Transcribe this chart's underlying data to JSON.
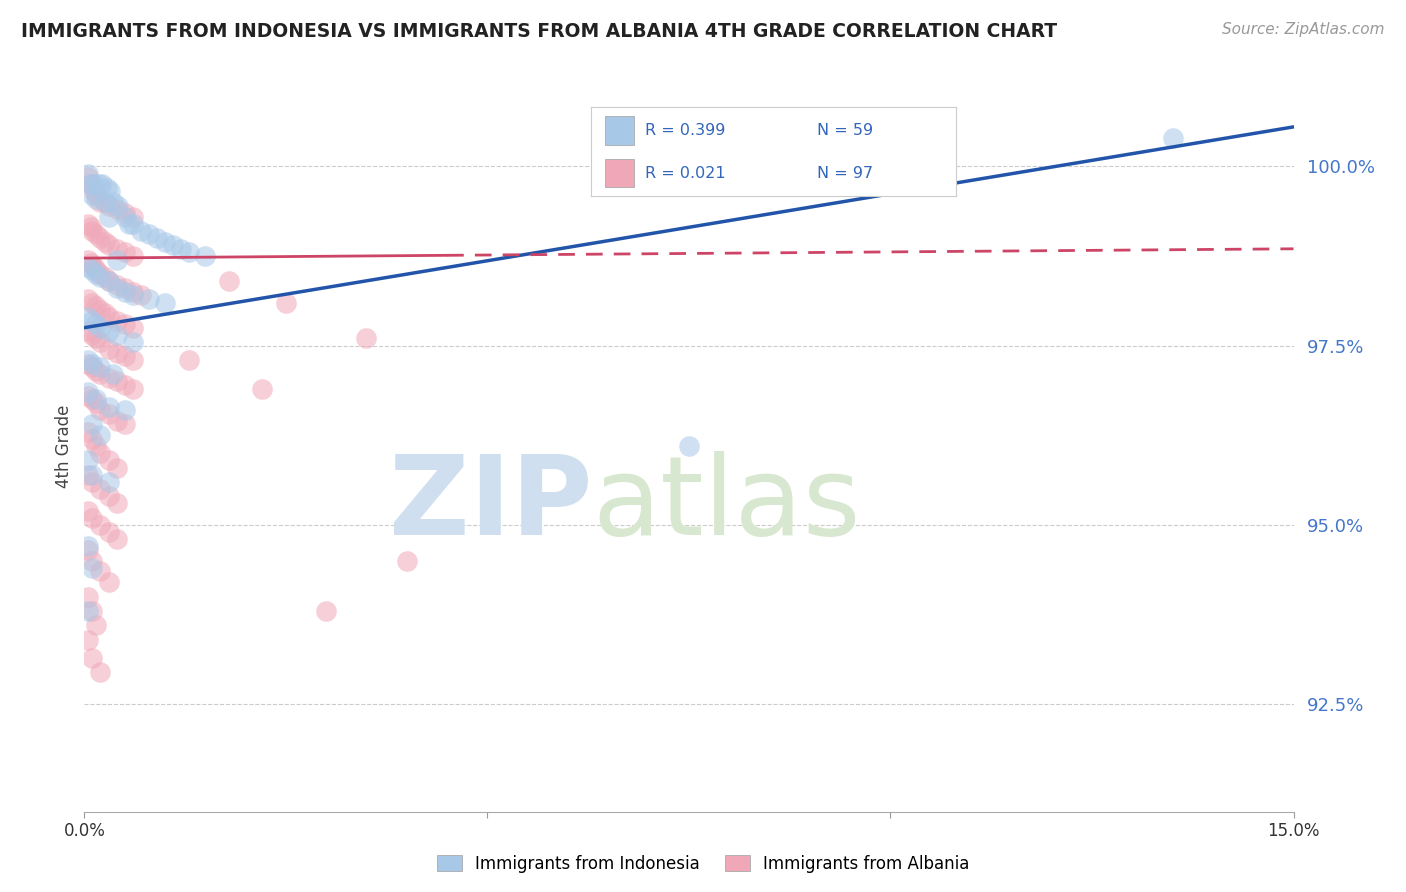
{
  "title": "IMMIGRANTS FROM INDONESIA VS IMMIGRANTS FROM ALBANIA 4TH GRADE CORRELATION CHART",
  "source_text": "Source: ZipAtlas.com",
  "ylabel": "4th Grade",
  "y_ticks": [
    92.5,
    95.0,
    97.5,
    100.0
  ],
  "y_tick_labels": [
    "92.5%",
    "95.0%",
    "97.5%",
    "100.0%"
  ],
  "x_range": [
    0.0,
    15.0
  ],
  "y_range": [
    91.0,
    101.2
  ],
  "indonesia_R": 0.399,
  "indonesia_N": 59,
  "albania_R": 0.021,
  "albania_N": 97,
  "blue_color": "#a8c8e8",
  "pink_color": "#f0a8b8",
  "blue_line_color": "#2255aa",
  "pink_line_color": "#cc4466",
  "watermark_color": "#d0dff0",
  "legend_label_indonesia": "Immigrants from Indonesia",
  "legend_label_albania": "Immigrants from Albania",
  "blue_line_x0": 0.0,
  "blue_line_y0": 97.75,
  "blue_line_x1": 15.0,
  "blue_line_y1": 100.55,
  "pink_line_x0": 0.0,
  "pink_line_y0": 98.72,
  "pink_line_x1": 15.0,
  "pink_line_y1": 98.85,
  "pink_solid_end": 4.5,
  "indonesia_scatter": [
    [
      0.05,
      99.9
    ],
    [
      0.08,
      99.75
    ],
    [
      0.12,
      99.75
    ],
    [
      0.18,
      99.75
    ],
    [
      0.22,
      99.75
    ],
    [
      0.28,
      99.7
    ],
    [
      0.32,
      99.65
    ],
    [
      0.1,
      99.6
    ],
    [
      0.15,
      99.55
    ],
    [
      0.25,
      99.5
    ],
    [
      0.35,
      99.5
    ],
    [
      0.42,
      99.45
    ],
    [
      0.3,
      99.3
    ],
    [
      0.5,
      99.3
    ],
    [
      0.55,
      99.2
    ],
    [
      0.6,
      99.2
    ],
    [
      0.7,
      99.1
    ],
    [
      0.8,
      99.05
    ],
    [
      0.9,
      99.0
    ],
    [
      1.0,
      98.95
    ],
    [
      1.1,
      98.9
    ],
    [
      1.2,
      98.85
    ],
    [
      1.3,
      98.8
    ],
    [
      1.5,
      98.75
    ],
    [
      0.4,
      98.7
    ],
    [
      0.05,
      98.6
    ],
    [
      0.1,
      98.55
    ],
    [
      0.15,
      98.5
    ],
    [
      0.2,
      98.45
    ],
    [
      0.3,
      98.4
    ],
    [
      0.4,
      98.3
    ],
    [
      0.5,
      98.25
    ],
    [
      0.6,
      98.2
    ],
    [
      0.8,
      98.15
    ],
    [
      1.0,
      98.1
    ],
    [
      0.05,
      97.9
    ],
    [
      0.1,
      97.85
    ],
    [
      0.15,
      97.8
    ],
    [
      0.2,
      97.75
    ],
    [
      0.3,
      97.7
    ],
    [
      0.4,
      97.65
    ],
    [
      0.6,
      97.55
    ],
    [
      0.05,
      97.3
    ],
    [
      0.1,
      97.25
    ],
    [
      0.2,
      97.2
    ],
    [
      0.35,
      97.1
    ],
    [
      0.05,
      96.85
    ],
    [
      0.15,
      96.75
    ],
    [
      0.3,
      96.65
    ],
    [
      0.5,
      96.6
    ],
    [
      0.1,
      96.4
    ],
    [
      0.2,
      96.25
    ],
    [
      0.05,
      95.9
    ],
    [
      0.1,
      95.7
    ],
    [
      0.3,
      95.6
    ],
    [
      0.05,
      94.7
    ],
    [
      0.1,
      94.4
    ],
    [
      0.05,
      93.8
    ],
    [
      7.5,
      96.1
    ],
    [
      13.5,
      100.4
    ]
  ],
  "albania_scatter": [
    [
      0.05,
      99.85
    ],
    [
      0.08,
      99.75
    ],
    [
      0.12,
      99.65
    ],
    [
      0.15,
      99.6
    ],
    [
      0.2,
      99.5
    ],
    [
      0.25,
      99.5
    ],
    [
      0.3,
      99.45
    ],
    [
      0.4,
      99.4
    ],
    [
      0.5,
      99.35
    ],
    [
      0.6,
      99.3
    ],
    [
      0.05,
      99.2
    ],
    [
      0.08,
      99.15
    ],
    [
      0.1,
      99.1
    ],
    [
      0.15,
      99.05
    ],
    [
      0.2,
      99.0
    ],
    [
      0.25,
      98.95
    ],
    [
      0.3,
      98.9
    ],
    [
      0.4,
      98.85
    ],
    [
      0.5,
      98.8
    ],
    [
      0.6,
      98.75
    ],
    [
      0.05,
      98.7
    ],
    [
      0.08,
      98.65
    ],
    [
      0.12,
      98.6
    ],
    [
      0.15,
      98.55
    ],
    [
      0.2,
      98.5
    ],
    [
      0.25,
      98.45
    ],
    [
      0.3,
      98.4
    ],
    [
      0.4,
      98.35
    ],
    [
      0.5,
      98.3
    ],
    [
      0.6,
      98.25
    ],
    [
      0.7,
      98.2
    ],
    [
      0.05,
      98.15
    ],
    [
      0.1,
      98.1
    ],
    [
      0.15,
      98.05
    ],
    [
      0.2,
      98.0
    ],
    [
      0.25,
      97.95
    ],
    [
      0.3,
      97.9
    ],
    [
      0.4,
      97.85
    ],
    [
      0.5,
      97.8
    ],
    [
      0.6,
      97.75
    ],
    [
      0.05,
      97.7
    ],
    [
      0.1,
      97.65
    ],
    [
      0.15,
      97.6
    ],
    [
      0.2,
      97.55
    ],
    [
      0.3,
      97.45
    ],
    [
      0.4,
      97.4
    ],
    [
      0.5,
      97.35
    ],
    [
      0.6,
      97.3
    ],
    [
      0.05,
      97.25
    ],
    [
      0.1,
      97.2
    ],
    [
      0.15,
      97.15
    ],
    [
      0.2,
      97.1
    ],
    [
      0.3,
      97.05
    ],
    [
      0.4,
      97.0
    ],
    [
      0.5,
      96.95
    ],
    [
      0.6,
      96.9
    ],
    [
      0.05,
      96.8
    ],
    [
      0.1,
      96.75
    ],
    [
      0.15,
      96.7
    ],
    [
      0.2,
      96.6
    ],
    [
      0.3,
      96.55
    ],
    [
      0.4,
      96.45
    ],
    [
      0.5,
      96.4
    ],
    [
      0.05,
      96.3
    ],
    [
      0.1,
      96.2
    ],
    [
      0.15,
      96.1
    ],
    [
      0.2,
      96.0
    ],
    [
      0.3,
      95.9
    ],
    [
      0.4,
      95.8
    ],
    [
      0.05,
      95.7
    ],
    [
      0.1,
      95.6
    ],
    [
      0.2,
      95.5
    ],
    [
      0.3,
      95.4
    ],
    [
      0.4,
      95.3
    ],
    [
      0.05,
      95.2
    ],
    [
      0.1,
      95.1
    ],
    [
      0.2,
      95.0
    ],
    [
      0.3,
      94.9
    ],
    [
      0.4,
      94.8
    ],
    [
      0.05,
      94.65
    ],
    [
      0.1,
      94.5
    ],
    [
      0.2,
      94.35
    ],
    [
      0.3,
      94.2
    ],
    [
      0.05,
      94.0
    ],
    [
      0.1,
      93.8
    ],
    [
      0.15,
      93.6
    ],
    [
      0.05,
      93.4
    ],
    [
      0.1,
      93.15
    ],
    [
      0.2,
      92.95
    ],
    [
      1.8,
      98.4
    ],
    [
      2.5,
      98.1
    ],
    [
      3.5,
      97.6
    ],
    [
      1.3,
      97.3
    ],
    [
      2.2,
      96.9
    ],
    [
      4.0,
      94.5
    ],
    [
      3.0,
      93.8
    ]
  ]
}
